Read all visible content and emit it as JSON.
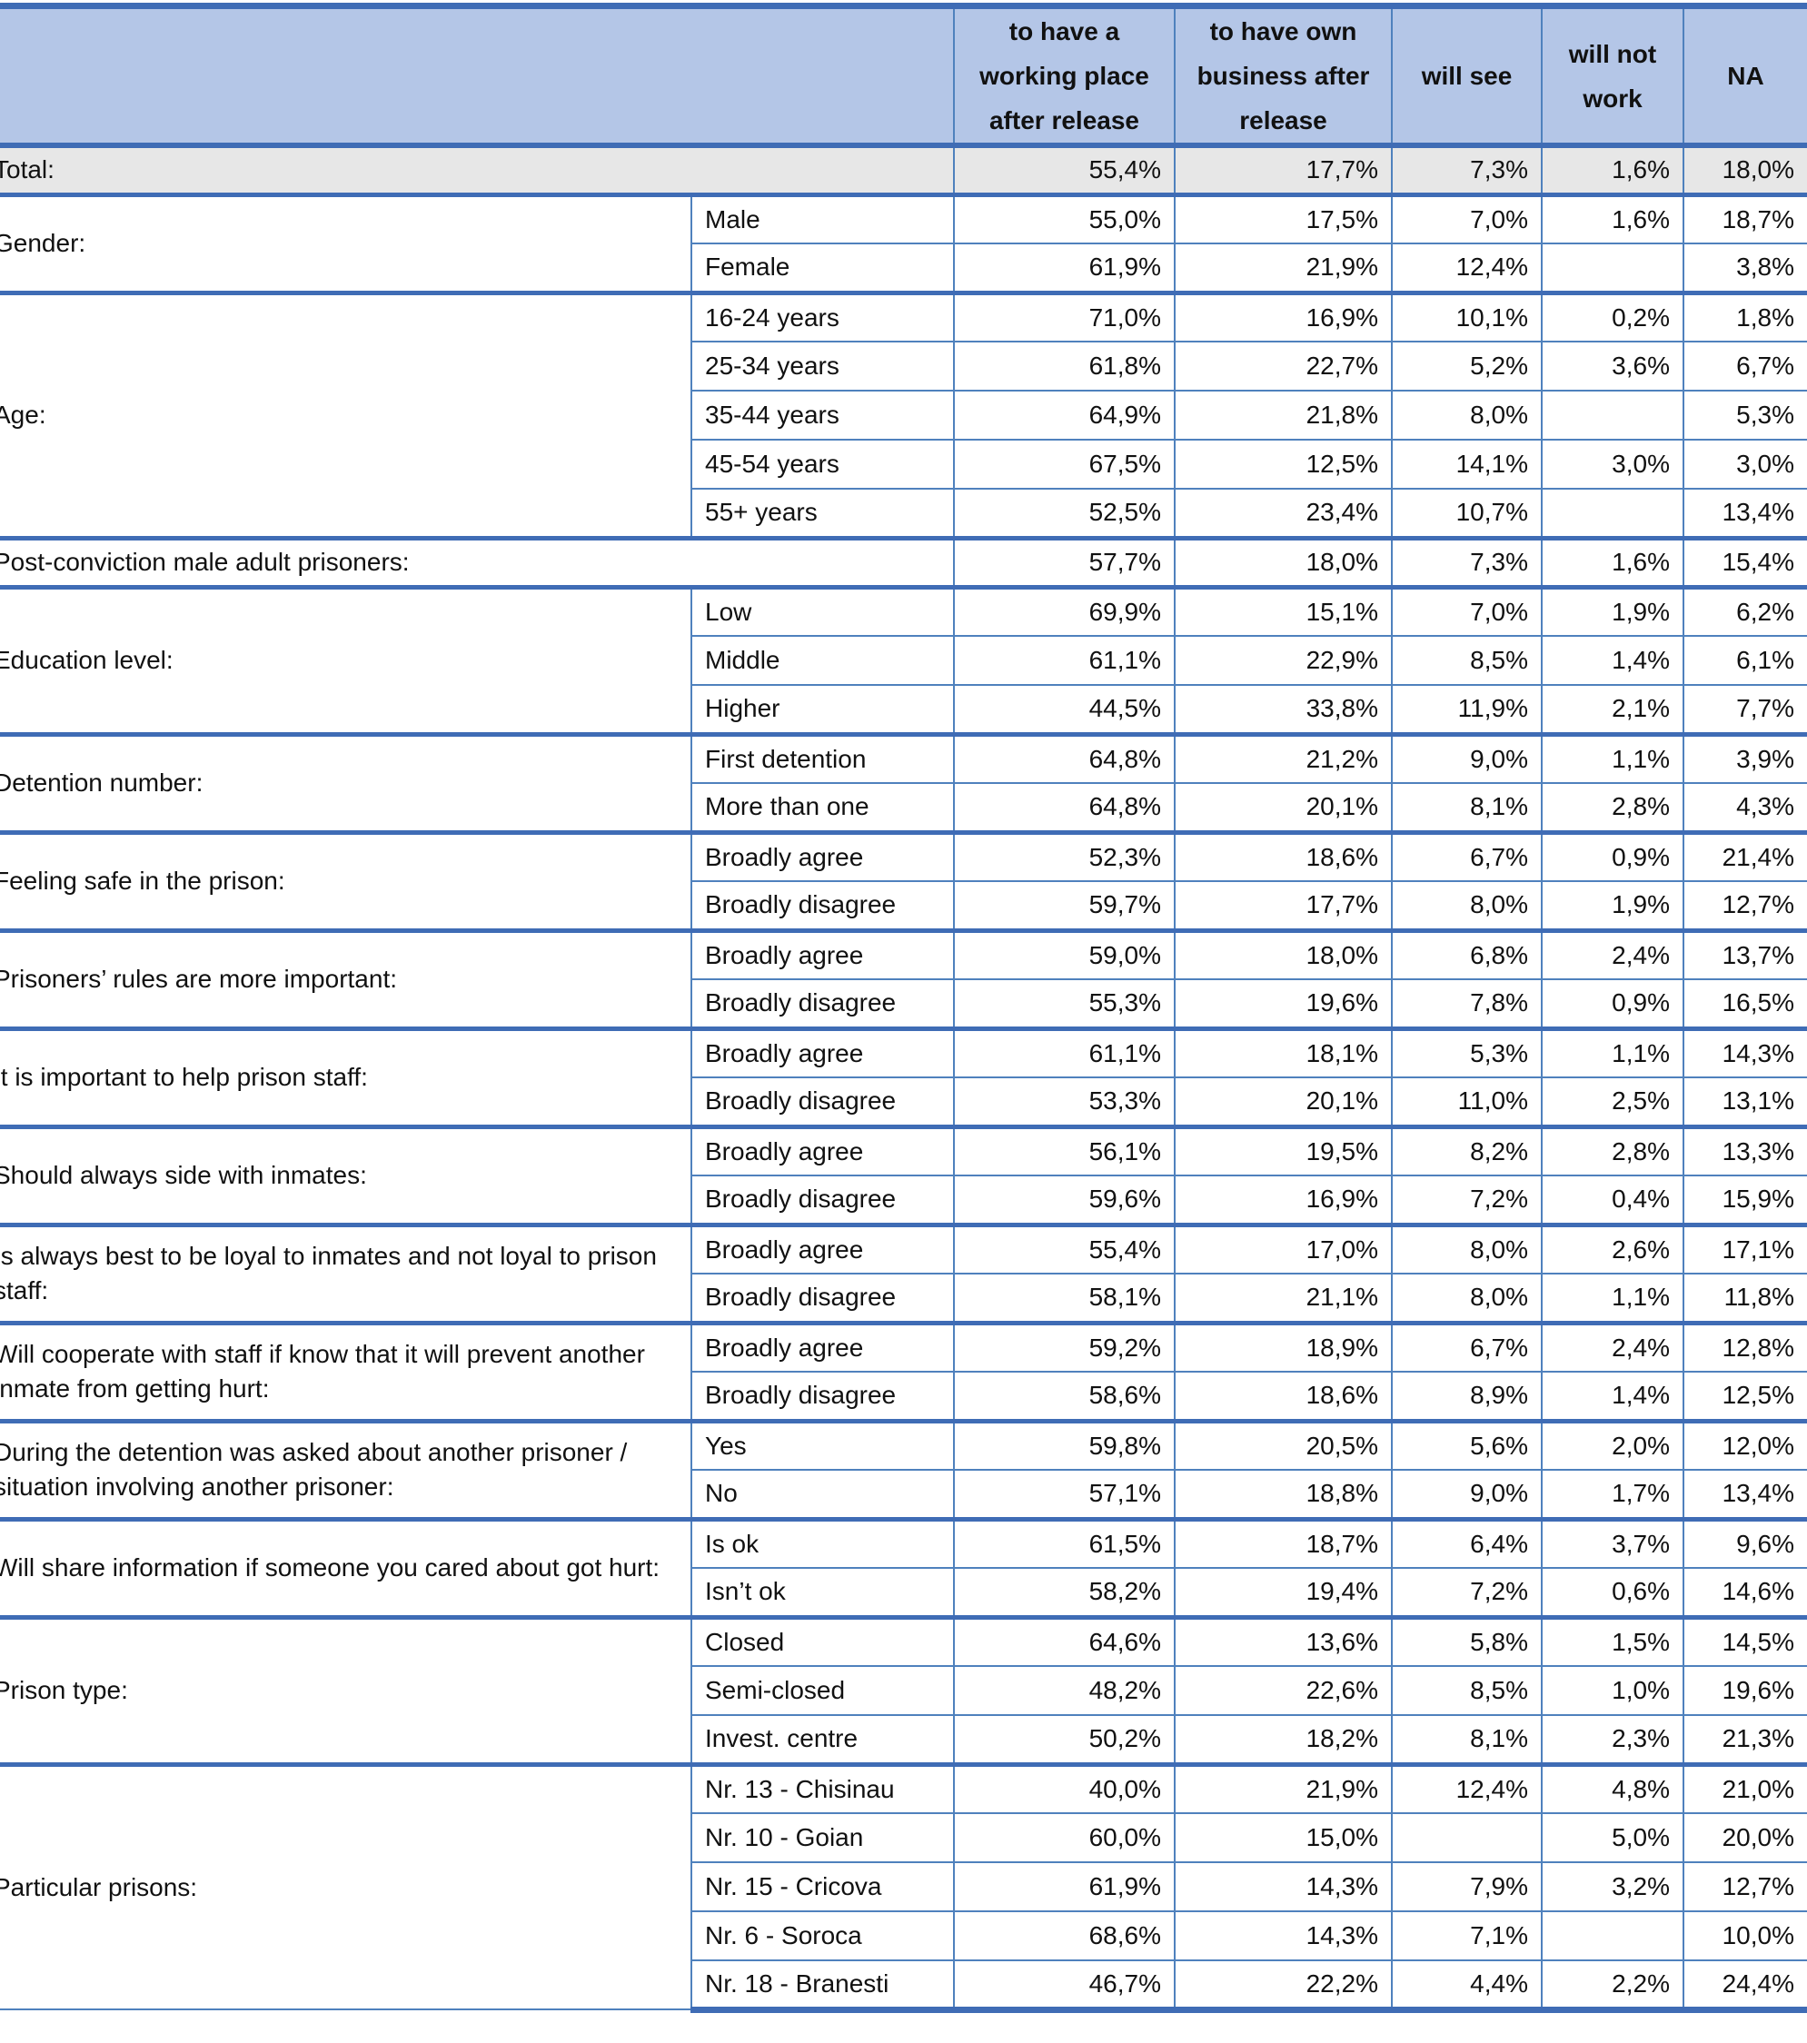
{
  "chart_data": {
    "type": "table",
    "title": "",
    "columns": [
      "to have a working place after release",
      "to have own business after release",
      "will see",
      "will not work",
      "NA"
    ],
    "colors": {
      "header_bg": "#B4C6E7",
      "thick_border": "#3F6CB5",
      "thin_border": "#4F81BD",
      "total_row_bg": "#E7E7E7",
      "text": "#111111"
    },
    "groups": [
      {
        "label": "Total:",
        "shaded": true,
        "rows": [
          {
            "name": null,
            "values": [
              "55,4%",
              "17,7%",
              "7,3%",
              "1,6%",
              "18,0%"
            ]
          }
        ]
      },
      {
        "label": "Gender:",
        "rows": [
          {
            "name": "Male",
            "values": [
              "55,0%",
              "17,5%",
              "7,0%",
              "1,6%",
              "18,7%"
            ]
          },
          {
            "name": "Female",
            "values": [
              "61,9%",
              "21,9%",
              "12,4%",
              "",
              "3,8%"
            ]
          }
        ]
      },
      {
        "label": "Age:",
        "rows": [
          {
            "name": "16-24 years",
            "values": [
              "71,0%",
              "16,9%",
              "10,1%",
              "0,2%",
              "1,8%"
            ]
          },
          {
            "name": "25-34 years",
            "values": [
              "61,8%",
              "22,7%",
              "5,2%",
              "3,6%",
              "6,7%"
            ]
          },
          {
            "name": "35-44 years",
            "values": [
              "64,9%",
              "21,8%",
              "8,0%",
              "",
              "5,3%"
            ]
          },
          {
            "name": "45-54 years",
            "values": [
              "67,5%",
              "12,5%",
              "14,1%",
              "3,0%",
              "3,0%"
            ]
          },
          {
            "name": "55+ years",
            "values": [
              "52,5%",
              "23,4%",
              "10,7%",
              "",
              "13,4%"
            ]
          }
        ]
      },
      {
        "label": "Post-conviction male adult prisoners:",
        "rows": [
          {
            "name": null,
            "values": [
              "57,7%",
              "18,0%",
              "7,3%",
              "1,6%",
              "15,4%"
            ]
          }
        ]
      },
      {
        "label": "Education level:",
        "rows": [
          {
            "name": "Low",
            "values": [
              "69,9%",
              "15,1%",
              "7,0%",
              "1,9%",
              "6,2%"
            ]
          },
          {
            "name": "Middle",
            "values": [
              "61,1%",
              "22,9%",
              "8,5%",
              "1,4%",
              "6,1%"
            ]
          },
          {
            "name": "Higher",
            "values": [
              "44,5%",
              "33,8%",
              "11,9%",
              "2,1%",
              "7,7%"
            ]
          }
        ]
      },
      {
        "label": "Detention number:",
        "rows": [
          {
            "name": "First detention",
            "values": [
              "64,8%",
              "21,2%",
              "9,0%",
              "1,1%",
              "3,9%"
            ]
          },
          {
            "name": "More than one",
            "values": [
              "64,8%",
              "20,1%",
              "8,1%",
              "2,8%",
              "4,3%"
            ]
          }
        ]
      },
      {
        "label": "Feeling safe in the prison:",
        "rows": [
          {
            "name": "Broadly agree",
            "values": [
              "52,3%",
              "18,6%",
              "6,7%",
              "0,9%",
              "21,4%"
            ]
          },
          {
            "name": "Broadly disagree",
            "values": [
              "59,7%",
              "17,7%",
              "8,0%",
              "1,9%",
              "12,7%"
            ]
          }
        ]
      },
      {
        "label": "Prisoners’ rules are more important:",
        "rows": [
          {
            "name": "Broadly agree",
            "values": [
              "59,0%",
              "18,0%",
              "6,8%",
              "2,4%",
              "13,7%"
            ]
          },
          {
            "name": "Broadly disagree",
            "values": [
              "55,3%",
              "19,6%",
              "7,8%",
              "0,9%",
              "16,5%"
            ]
          }
        ]
      },
      {
        "label": "It is important to help prison staff:",
        "rows": [
          {
            "name": "Broadly agree",
            "values": [
              "61,1%",
              "18,1%",
              "5,3%",
              "1,1%",
              "14,3%"
            ]
          },
          {
            "name": "Broadly disagree",
            "values": [
              "53,3%",
              "20,1%",
              "11,0%",
              "2,5%",
              "13,1%"
            ]
          }
        ]
      },
      {
        "label": "Should always side with inmates:",
        "rows": [
          {
            "name": "Broadly agree",
            "values": [
              "56,1%",
              "19,5%",
              "8,2%",
              "2,8%",
              "13,3%"
            ]
          },
          {
            "name": "Broadly disagree",
            "values": [
              "59,6%",
              "16,9%",
              "7,2%",
              "0,4%",
              "15,9%"
            ]
          }
        ]
      },
      {
        "label": "Is always best to be loyal to inmates and not loyal to prison staff:",
        "rows": [
          {
            "name": "Broadly agree",
            "values": [
              "55,4%",
              "17,0%",
              "8,0%",
              "2,6%",
              "17,1%"
            ]
          },
          {
            "name": "Broadly disagree",
            "values": [
              "58,1%",
              "21,1%",
              "8,0%",
              "1,1%",
              "11,8%"
            ]
          }
        ]
      },
      {
        "label": "Will cooperate with staff if know that it will prevent another inmate from getting hurt:",
        "rows": [
          {
            "name": "Broadly agree",
            "values": [
              "59,2%",
              "18,9%",
              "6,7%",
              "2,4%",
              "12,8%"
            ]
          },
          {
            "name": "Broadly disagree",
            "values": [
              "58,6%",
              "18,6%",
              "8,9%",
              "1,4%",
              "12,5%"
            ]
          }
        ]
      },
      {
        "label": "During the detention was asked about another prisoner / situation involving another prisoner:",
        "rows": [
          {
            "name": "Yes",
            "values": [
              "59,8%",
              "20,5%",
              "5,6%",
              "2,0%",
              "12,0%"
            ]
          },
          {
            "name": "No",
            "values": [
              "57,1%",
              "18,8%",
              "9,0%",
              "1,7%",
              "13,4%"
            ]
          }
        ]
      },
      {
        "label": "Will share information if someone you cared about got hurt:",
        "rows": [
          {
            "name": "Is ok",
            "values": [
              "61,5%",
              "18,7%",
              "6,4%",
              "3,7%",
              "9,6%"
            ]
          },
          {
            "name": "Isn’t ok",
            "values": [
              "58,2%",
              "19,4%",
              "7,2%",
              "0,6%",
              "14,6%"
            ]
          }
        ]
      },
      {
        "label": "Prison type:",
        "rows": [
          {
            "name": "Closed",
            "values": [
              "64,6%",
              "13,6%",
              "5,8%",
              "1,5%",
              "14,5%"
            ]
          },
          {
            "name": "Semi-closed",
            "values": [
              "48,2%",
              "22,6%",
              "8,5%",
              "1,0%",
              "19,6%"
            ]
          },
          {
            "name": "Invest. centre",
            "values": [
              "50,2%",
              "18,2%",
              "8,1%",
              "2,3%",
              "21,3%"
            ]
          }
        ]
      },
      {
        "label": "Particular prisons:",
        "rows": [
          {
            "name": "Nr. 13 - Chisinau",
            "values": [
              "40,0%",
              "21,9%",
              "12,4%",
              "4,8%",
              "21,0%"
            ]
          },
          {
            "name": "Nr. 10 - Goian",
            "values": [
              "60,0%",
              "15,0%",
              "",
              "5,0%",
              "20,0%"
            ]
          },
          {
            "name": "Nr. 15 - Cricova",
            "values": [
              "61,9%",
              "14,3%",
              "7,9%",
              "3,2%",
              "12,7%"
            ]
          },
          {
            "name": "Nr. 6 - Soroca",
            "values": [
              "68,6%",
              "14,3%",
              "7,1%",
              "",
              "10,0%"
            ]
          },
          {
            "name": "Nr. 18 - Branesti",
            "values": [
              "46,7%",
              "22,2%",
              "4,4%",
              "2,2%",
              "24,4%"
            ]
          }
        ]
      }
    ]
  }
}
